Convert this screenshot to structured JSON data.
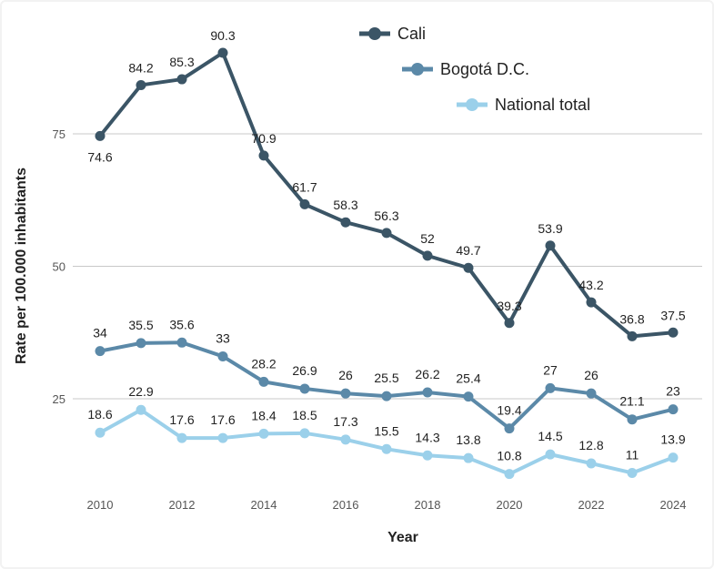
{
  "chart_data": {
    "type": "line",
    "title": "",
    "xlabel": "Year",
    "ylabel": "Rate per 100.000 inhabitants",
    "x": [
      2010,
      2011,
      2012,
      2013,
      2014,
      2015,
      2016,
      2017,
      2018,
      2019,
      2020,
      2021,
      2022,
      2023,
      2024
    ],
    "x_tick_labels": [
      "2010",
      "2012",
      "2014",
      "2016",
      "2018",
      "2020",
      "2022",
      "2024"
    ],
    "y_ticks": [
      25,
      50,
      75
    ],
    "ylim": [
      8.4,
      99.7
    ],
    "grid": "horizontal",
    "legend_position": "top-right",
    "series": [
      {
        "name": "Cali",
        "color": "#3b5566",
        "values": [
          74.6,
          84.2,
          85.3,
          90.3,
          70.9,
          61.7,
          58.3,
          56.3,
          52,
          49.7,
          39.3,
          53.9,
          43.2,
          36.8,
          37.5
        ],
        "labels": [
          "74.6",
          "84.2",
          "85.3",
          "90.3",
          "70.9",
          "61.7",
          "58.3",
          "56.3",
          "52",
          "49.7",
          "39.3",
          "53.9",
          "43.2",
          "36.8",
          "37.5"
        ]
      },
      {
        "name": "Bogotá D.C.",
        "color": "#5b89a8",
        "values": [
          34,
          35.5,
          35.6,
          33,
          28.2,
          26.9,
          26,
          25.5,
          26.2,
          25.4,
          19.4,
          27,
          26,
          21.1,
          23
        ],
        "labels": [
          "34",
          "35.5",
          "35.6",
          "33",
          "28.2",
          "26.9",
          "26",
          "25.5",
          "26.2",
          "25.4",
          "19.4",
          "27",
          "26",
          "21.1",
          "23"
        ]
      },
      {
        "name": "National total",
        "color": "#9bd0ea",
        "values": [
          18.6,
          22.9,
          17.6,
          17.6,
          18.4,
          18.5,
          17.3,
          15.5,
          14.3,
          13.8,
          10.8,
          14.5,
          12.8,
          11,
          13.9
        ],
        "labels": [
          "18.6",
          "22.9",
          "17.6",
          "17.6",
          "18.4",
          "18.5",
          "17.3",
          "15.5",
          "14.3",
          "13.8",
          "10.8",
          "14.5",
          "12.8",
          "11",
          "13.9"
        ]
      }
    ]
  }
}
